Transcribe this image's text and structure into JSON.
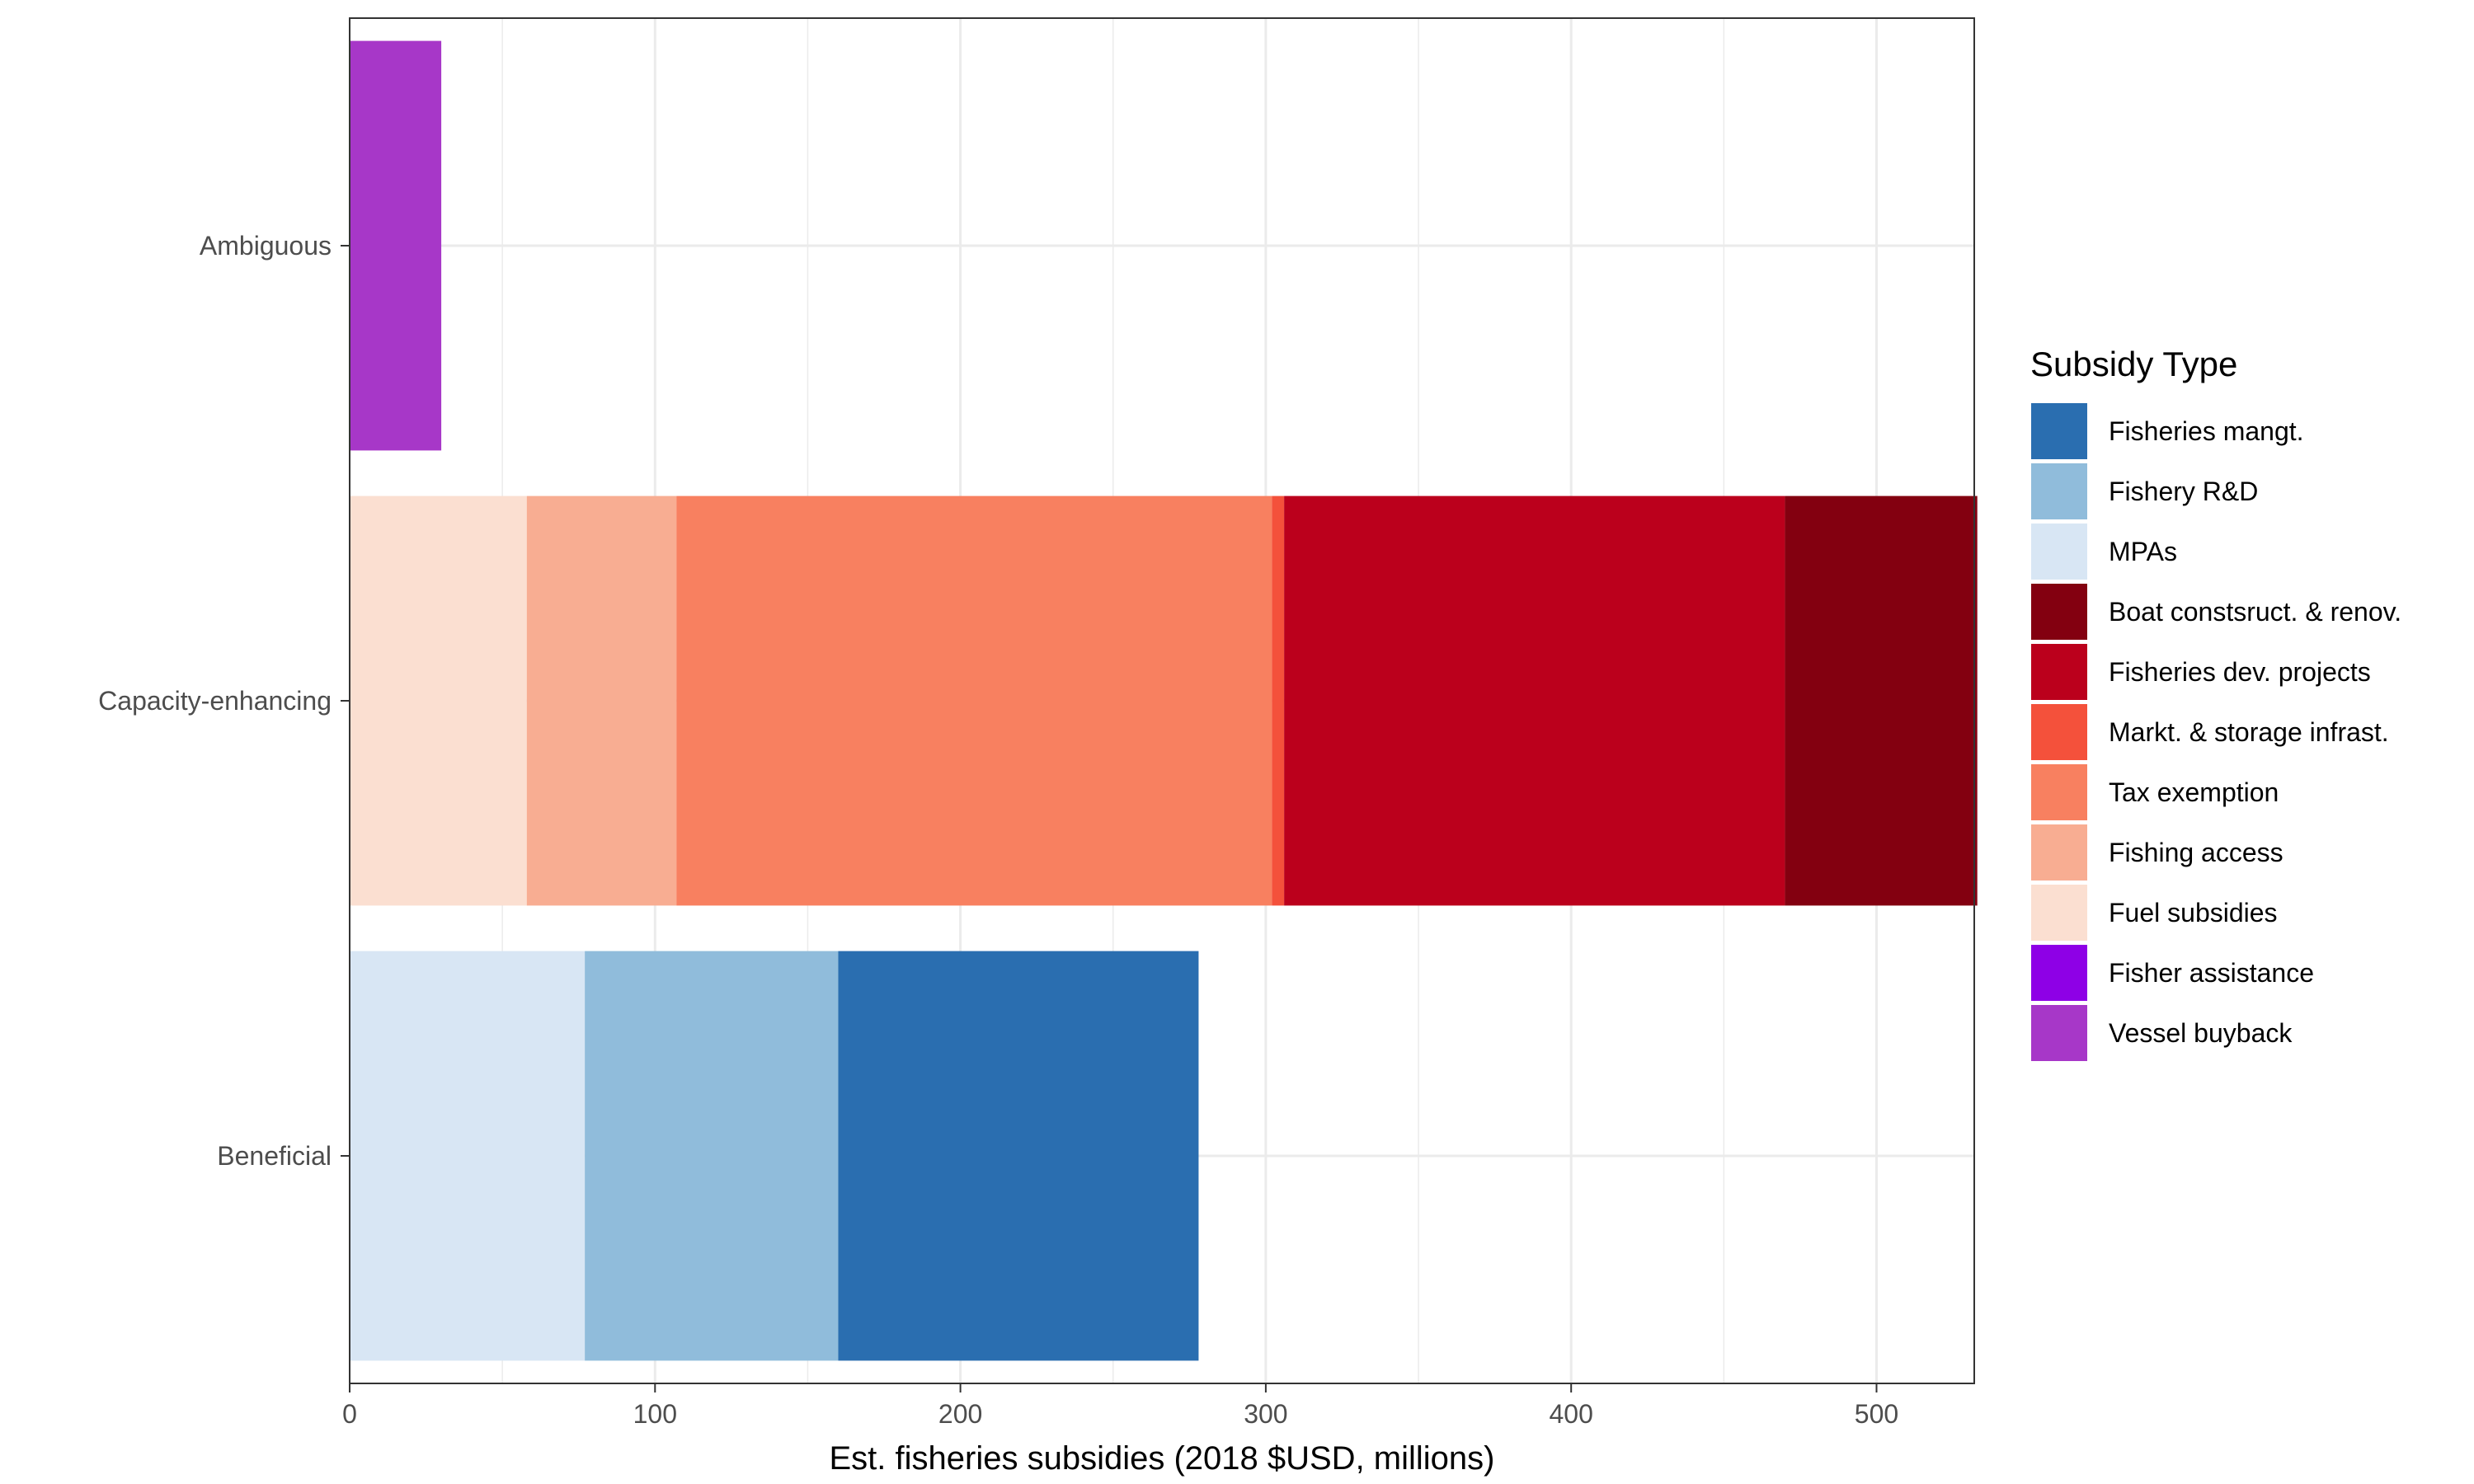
{
  "chart_data": {
    "type": "bar",
    "orientation": "horizontal",
    "stacked": true,
    "xlabel": "Est. fisheries subsidies (2018 $USD, millions)",
    "ylabel": "",
    "xlim": [
      0,
      532
    ],
    "x_ticks": [
      0,
      100,
      200,
      300,
      400,
      500
    ],
    "grid": true,
    "categories": [
      "Ambiguous",
      "Capacity-enhancing",
      "Beneficial"
    ],
    "series": [
      {
        "name": "Fisheries mangt.",
        "color": "#2a6eb0",
        "values": [
          0,
          0,
          118
        ]
      },
      {
        "name": "Fishery R&D",
        "color": "#90bcdb",
        "values": [
          0,
          0,
          83
        ]
      },
      {
        "name": "MPAs",
        "color": "#d8e6f4",
        "values": [
          0,
          0,
          77
        ]
      },
      {
        "name": "Boat constsruct. & renov.",
        "color": "#830010",
        "values": [
          0,
          63,
          0
        ]
      },
      {
        "name": "Fisheries dev. projects",
        "color": "#bb001c",
        "values": [
          0,
          164,
          0
        ]
      },
      {
        "name": "Markt. & storage infrast.",
        "color": "#f4513b",
        "values": [
          0,
          4,
          0
        ]
      },
      {
        "name": "Tax exemption",
        "color": "#f88060",
        "values": [
          0,
          195,
          0
        ]
      },
      {
        "name": "Fishing access",
        "color": "#f8ad92",
        "values": [
          0,
          49,
          0
        ]
      },
      {
        "name": "Fuel subsidies",
        "color": "#fbdfd1",
        "values": [
          0,
          58,
          0
        ]
      },
      {
        "name": "Fisher assistance",
        "color": "#8e00e6",
        "values": [
          0,
          0,
          0
        ]
      },
      {
        "name": "Vessel buyback",
        "color": "#a737c8",
        "values": [
          30,
          0,
          0
        ]
      }
    ],
    "legend": {
      "title": "Subsidy Type",
      "position": "right"
    }
  }
}
